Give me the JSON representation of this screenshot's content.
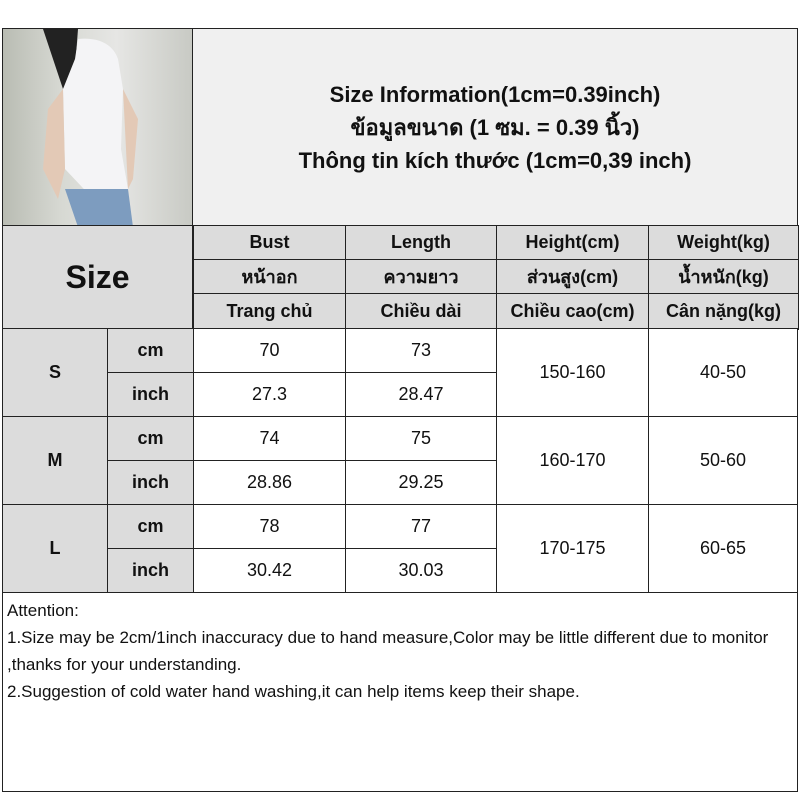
{
  "title": {
    "line1": "Size Information(1cm=0.39inch)",
    "line2": "ข้อมูลขนาด (1 ซม. = 0.39 นิ้ว)",
    "line3": "Thông tin kích thước (1cm=0,39 inch)"
  },
  "size_label": "Size",
  "headers": [
    {
      "en": "Bust",
      "th": "หน้าอก",
      "vi": "Trang chủ"
    },
    {
      "en": "Length",
      "th": "ความยาว",
      "vi": "Chiều dài"
    },
    {
      "en": "Height(cm)",
      "th": "ส่วนสูง(cm)",
      "vi": "Chiều cao(cm)"
    },
    {
      "en": "Weight(kg)",
      "th": "น้ำหนัก(kg)",
      "vi": "Cân nặng(kg)"
    }
  ],
  "rows": [
    {
      "size": "S",
      "cm_label": "cm",
      "inch_label": "inch",
      "bust_cm": "70",
      "length_cm": "73",
      "bust_in": "27.3",
      "length_in": "28.47",
      "height": "150-160",
      "weight": "40-50"
    },
    {
      "size": "M",
      "cm_label": "cm",
      "inch_label": "inch",
      "bust_cm": "74",
      "length_cm": "75",
      "bust_in": "28.86",
      "length_in": "29.25",
      "height": "160-170",
      "weight": "50-60"
    },
    {
      "size": "L",
      "cm_label": "cm",
      "inch_label": "inch",
      "bust_cm": "78",
      "length_cm": "77",
      "bust_in": "30.42",
      "length_in": "30.03",
      "height": "170-175",
      "weight": "60-65"
    }
  ],
  "notes": {
    "heading": "Attention:",
    "items": [
      "1.Size may be 2cm/1inch inaccuracy due to hand measure,Color may be little different due to monitor ,thanks for your understanding.",
      "2.Suggestion of cold water hand washing,it can help items keep their shape."
    ]
  }
}
